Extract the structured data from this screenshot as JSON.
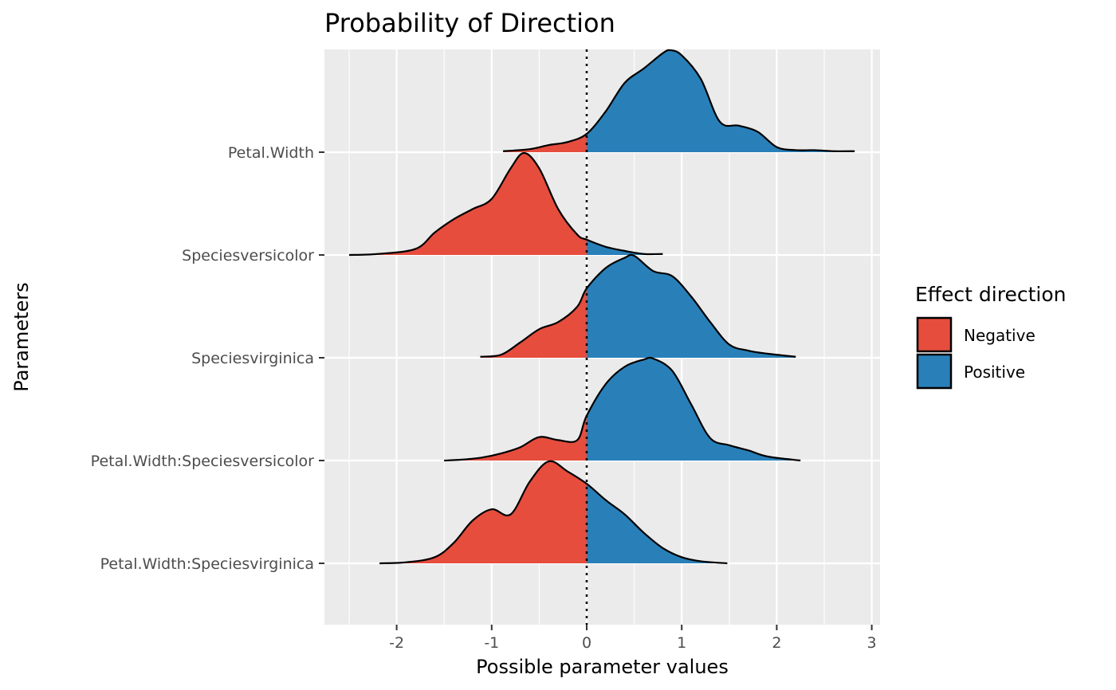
{
  "chart_data": {
    "type": "ridgeline",
    "title": "Probability of Direction",
    "xlabel": "Possible parameter values",
    "ylabel": "Parameters",
    "xlim": [
      -2.75,
      3.1
    ],
    "x_ticks": [
      -2,
      -1,
      0,
      1,
      2,
      3
    ],
    "x_tick_labels": [
      "-2",
      "-1",
      "0",
      "1",
      "2",
      "3"
    ],
    "reference_line_x": 0,
    "grid": true,
    "legend": {
      "title": "Effect direction",
      "placement": "right",
      "items": [
        {
          "label": "Negative",
          "color": "#E64D3D"
        },
        {
          "label": "Positive",
          "color": "#2980B9"
        }
      ]
    },
    "series": [
      {
        "name": "Petal.Width",
        "x": [
          -0.88,
          -0.6,
          -0.4,
          -0.2,
          0,
          0.2,
          0.4,
          0.6,
          0.8,
          0.88,
          1.0,
          1.2,
          1.4,
          1.6,
          1.8,
          2.0,
          2.2,
          2.4,
          2.6,
          2.82
        ],
        "density": [
          0.01,
          0.03,
          0.07,
          0.1,
          0.18,
          0.4,
          0.68,
          0.82,
          0.97,
          1.0,
          0.95,
          0.72,
          0.3,
          0.26,
          0.2,
          0.05,
          0.02,
          0.02,
          0.01,
          0.01
        ]
      },
      {
        "name": "Speciesversicolor",
        "x": [
          -2.5,
          -2.2,
          -1.8,
          -1.6,
          -1.4,
          -1.2,
          -1.0,
          -0.8,
          -0.66,
          -0.5,
          -0.3,
          -0.1,
          0,
          0.2,
          0.4,
          0.6,
          0.8
        ],
        "density": [
          0.0,
          0.01,
          0.06,
          0.22,
          0.35,
          0.45,
          0.55,
          0.85,
          1.0,
          0.85,
          0.45,
          0.2,
          0.15,
          0.08,
          0.04,
          0.01,
          0.01
        ]
      },
      {
        "name": "Speciesvirginica",
        "x": [
          -1.12,
          -0.9,
          -0.7,
          -0.5,
          -0.3,
          -0.1,
          0,
          0.2,
          0.4,
          0.5,
          0.7,
          0.9,
          1.1,
          1.3,
          1.5,
          1.7,
          1.9,
          2.2
        ],
        "density": [
          0.01,
          0.03,
          0.15,
          0.28,
          0.35,
          0.5,
          0.68,
          0.88,
          0.98,
          1.0,
          0.85,
          0.8,
          0.6,
          0.35,
          0.13,
          0.07,
          0.04,
          0.01
        ]
      },
      {
        "name": "Petal.Width:Speciesversicolor",
        "x": [
          -1.5,
          -1.3,
          -1.1,
          -0.9,
          -0.7,
          -0.5,
          -0.3,
          -0.1,
          0,
          0.2,
          0.4,
          0.6,
          0.7,
          0.9,
          1.1,
          1.3,
          1.5,
          1.7,
          1.9,
          2.25
        ],
        "density": [
          0.0,
          0.01,
          0.03,
          0.07,
          0.13,
          0.23,
          0.2,
          0.2,
          0.44,
          0.75,
          0.92,
          0.99,
          1.0,
          0.88,
          0.55,
          0.22,
          0.15,
          0.1,
          0.04,
          0.0
        ]
      },
      {
        "name": "Petal.Width:Speciesvirginica",
        "x": [
          -2.18,
          -1.9,
          -1.6,
          -1.4,
          -1.2,
          -1.0,
          -0.8,
          -0.6,
          -0.4,
          -0.2,
          0,
          0.2,
          0.4,
          0.6,
          0.8,
          1.0,
          1.2,
          1.48
        ],
        "density": [
          0.0,
          0.01,
          0.06,
          0.2,
          0.42,
          0.53,
          0.48,
          0.8,
          1.0,
          0.9,
          0.78,
          0.62,
          0.48,
          0.3,
          0.15,
          0.06,
          0.02,
          0.0
        ]
      }
    ]
  }
}
